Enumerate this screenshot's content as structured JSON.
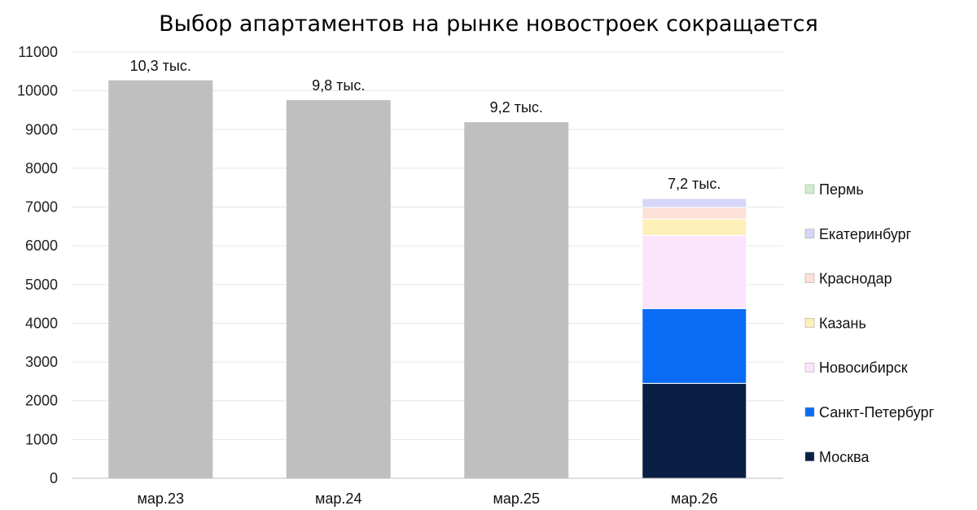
{
  "chart_data": {
    "type": "bar",
    "title": "Выбор апартаментов на рынке новостроек сокращается",
    "xlabel": "",
    "ylabel": "",
    "ylim": [
      0,
      11000
    ],
    "yticks": [
      0,
      1000,
      2000,
      3000,
      4000,
      5000,
      6000,
      7000,
      8000,
      9000,
      10000,
      11000
    ],
    "grid": true,
    "legend_position": "right",
    "categories": [
      "мар.23",
      "мар.24",
      "мар.25",
      "мар.26"
    ],
    "totals": [
      10270,
      9760,
      9190,
      7220
    ],
    "total_labels": [
      "10,3 тыс.",
      "9,8 тыс.",
      "9,2 тыс.",
      "7,2 тыс."
    ],
    "total_color": "#bfbfbf",
    "stack_category": "мар.26",
    "series": [
      {
        "name": "Москва",
        "value": 2450,
        "color": "#0a1f44"
      },
      {
        "name": "Санкт-Петербург",
        "value": 1930,
        "color": "#0a6cf5"
      },
      {
        "name": "Новосибирск",
        "value": 1890,
        "color": "#fce4fc"
      },
      {
        "name": "Казань",
        "value": 420,
        "color": "#fdf0b8"
      },
      {
        "name": "Краснодар",
        "value": 300,
        "color": "#fde0d6"
      },
      {
        "name": "Екатеринбург",
        "value": 230,
        "color": "#d6d6f8"
      },
      {
        "name": "Пермь",
        "value": 0,
        "color": "#cdeecc"
      }
    ]
  }
}
